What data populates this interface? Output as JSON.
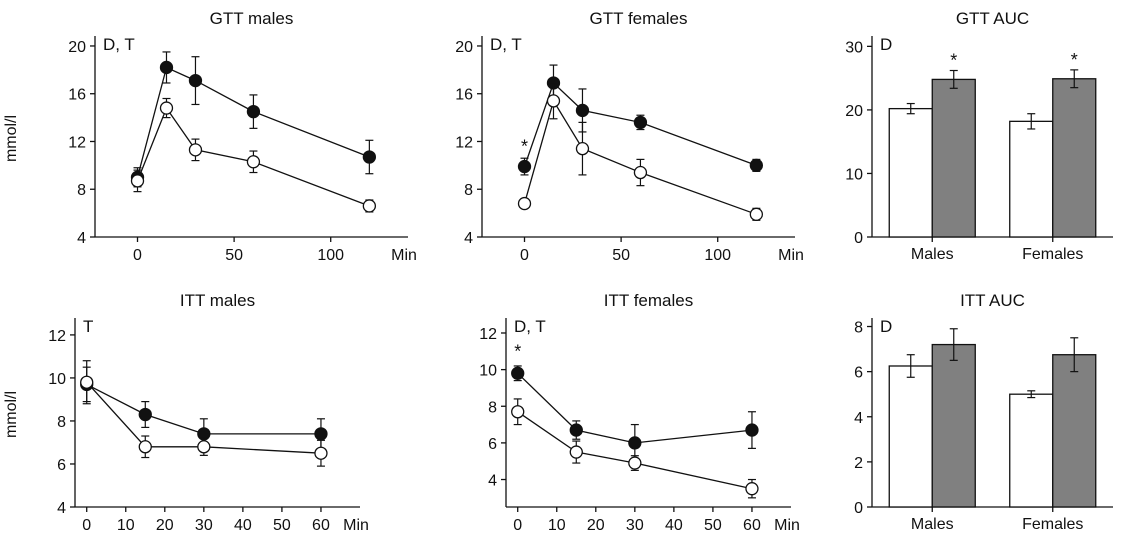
{
  "colors": {
    "ink": "#111111",
    "bar_control": "#ffffff",
    "bar_treated": "#808080"
  },
  "chart_data": [
    {
      "id": "gtt-males",
      "type": "line",
      "title": "GTT males",
      "letters": "D, T",
      "ylabel": "mmol/l",
      "x_unit_label": "Min",
      "xlim": [
        -22,
        140
      ],
      "ylim": [
        4,
        20.5
      ],
      "xticks": [
        0,
        50,
        100
      ],
      "yticks": [
        4,
        8,
        12,
        16,
        20
      ],
      "series": [
        {
          "marker": "filled",
          "x": [
            0,
            15,
            30,
            60,
            120
          ],
          "y": [
            9.0,
            18.2,
            17.1,
            14.5,
            10.7
          ],
          "err": [
            0.8,
            1.3,
            2.0,
            1.4,
            1.4
          ]
        },
        {
          "marker": "open",
          "x": [
            0,
            15,
            30,
            60,
            120
          ],
          "y": [
            8.7,
            14.8,
            11.3,
            10.3,
            6.6
          ],
          "err": [
            0.9,
            0.8,
            0.9,
            0.9,
            0.5
          ]
        }
      ],
      "annotations": []
    },
    {
      "id": "gtt-females",
      "type": "line",
      "title": "GTT females",
      "letters": "D, T",
      "ylabel": "",
      "x_unit_label": "Min",
      "xlim": [
        -22,
        140
      ],
      "ylim": [
        4,
        20.5
      ],
      "xticks": [
        0,
        50,
        100
      ],
      "yticks": [
        4,
        8,
        12,
        16,
        20
      ],
      "series": [
        {
          "marker": "filled",
          "x": [
            0,
            15,
            30,
            60,
            120
          ],
          "y": [
            9.9,
            16.9,
            14.6,
            13.6,
            10.0
          ],
          "err": [
            0.7,
            1.5,
            1.8,
            0.6,
            0.5
          ]
        },
        {
          "marker": "open",
          "x": [
            0,
            15,
            30,
            60,
            120
          ],
          "y": [
            6.8,
            15.4,
            11.4,
            9.4,
            5.9
          ],
          "err": [
            0.4,
            1.5,
            2.2,
            1.1,
            0.5
          ]
        }
      ],
      "annotations": [
        {
          "text": "*",
          "x": 0,
          "y": 11.6
        }
      ]
    },
    {
      "id": "gtt-auc",
      "type": "bar",
      "title": "GTT AUC",
      "letters": "D",
      "ylabel": "",
      "ylim": [
        0,
        31
      ],
      "yticks": [
        0,
        10,
        20,
        30
      ],
      "categories": [
        "Males",
        "Females"
      ],
      "series": [
        {
          "fill": "#ffffff",
          "values": [
            20.2,
            18.2
          ],
          "err": [
            0.8,
            1.2
          ]
        },
        {
          "fill": "#808080",
          "values": [
            24.8,
            24.9
          ],
          "err": [
            1.4,
            1.4
          ]
        }
      ],
      "annotations": [
        {
          "text": "*",
          "category": 0,
          "series": 1
        },
        {
          "text": "*",
          "category": 1,
          "series": 1
        }
      ]
    },
    {
      "id": "itt-males",
      "type": "line",
      "title": "ITT males",
      "letters": "T",
      "ylabel": "mmol/l",
      "x_unit_label": "Min",
      "xlim": [
        -3,
        70
      ],
      "ylim": [
        4,
        12.6
      ],
      "xticks": [
        0,
        10,
        20,
        30,
        40,
        50,
        60
      ],
      "yticks": [
        4,
        6,
        8,
        10,
        12
      ],
      "series": [
        {
          "marker": "filled",
          "x": [
            0,
            15,
            30,
            60
          ],
          "y": [
            9.7,
            8.3,
            7.4,
            7.4
          ],
          "err": [
            0.8,
            0.6,
            0.7,
            0.7
          ]
        },
        {
          "marker": "open",
          "x": [
            0,
            15,
            30,
            60
          ],
          "y": [
            9.8,
            6.8,
            6.8,
            6.5
          ],
          "err": [
            1.0,
            0.5,
            0.4,
            0.6
          ]
        }
      ],
      "annotations": []
    },
    {
      "id": "itt-females",
      "type": "line",
      "title": "ITT females",
      "letters": "D, T",
      "ylabel": "",
      "x_unit_label": "Min",
      "xlim": [
        -3,
        70
      ],
      "ylim": [
        2.5,
        12.6
      ],
      "xticks": [
        0,
        10,
        20,
        30,
        40,
        50,
        60
      ],
      "yticks": [
        4,
        6,
        8,
        10,
        12
      ],
      "series": [
        {
          "marker": "filled",
          "x": [
            0,
            15,
            30,
            60
          ],
          "y": [
            9.8,
            6.7,
            6.0,
            6.7
          ],
          "err": [
            0.4,
            0.5,
            1.0,
            1.0
          ]
        },
        {
          "marker": "open",
          "x": [
            0,
            15,
            30,
            60
          ],
          "y": [
            7.7,
            5.5,
            4.9,
            3.5
          ],
          "err": [
            0.7,
            0.6,
            0.4,
            0.5
          ]
        }
      ],
      "annotations": [
        {
          "text": "*",
          "x": 0,
          "y": 11.0
        }
      ]
    },
    {
      "id": "itt-auc",
      "type": "bar",
      "title": "ITT AUC",
      "letters": "D",
      "ylabel": "",
      "ylim": [
        0,
        8.2
      ],
      "yticks": [
        0,
        2,
        4,
        6,
        8
      ],
      "categories": [
        "Males",
        "Females"
      ],
      "series": [
        {
          "fill": "#ffffff",
          "values": [
            6.25,
            5.0
          ],
          "err": [
            0.5,
            0.15
          ]
        },
        {
          "fill": "#808080",
          "values": [
            7.2,
            6.75
          ],
          "err": [
            0.7,
            0.75
          ]
        }
      ],
      "annotations": []
    }
  ]
}
